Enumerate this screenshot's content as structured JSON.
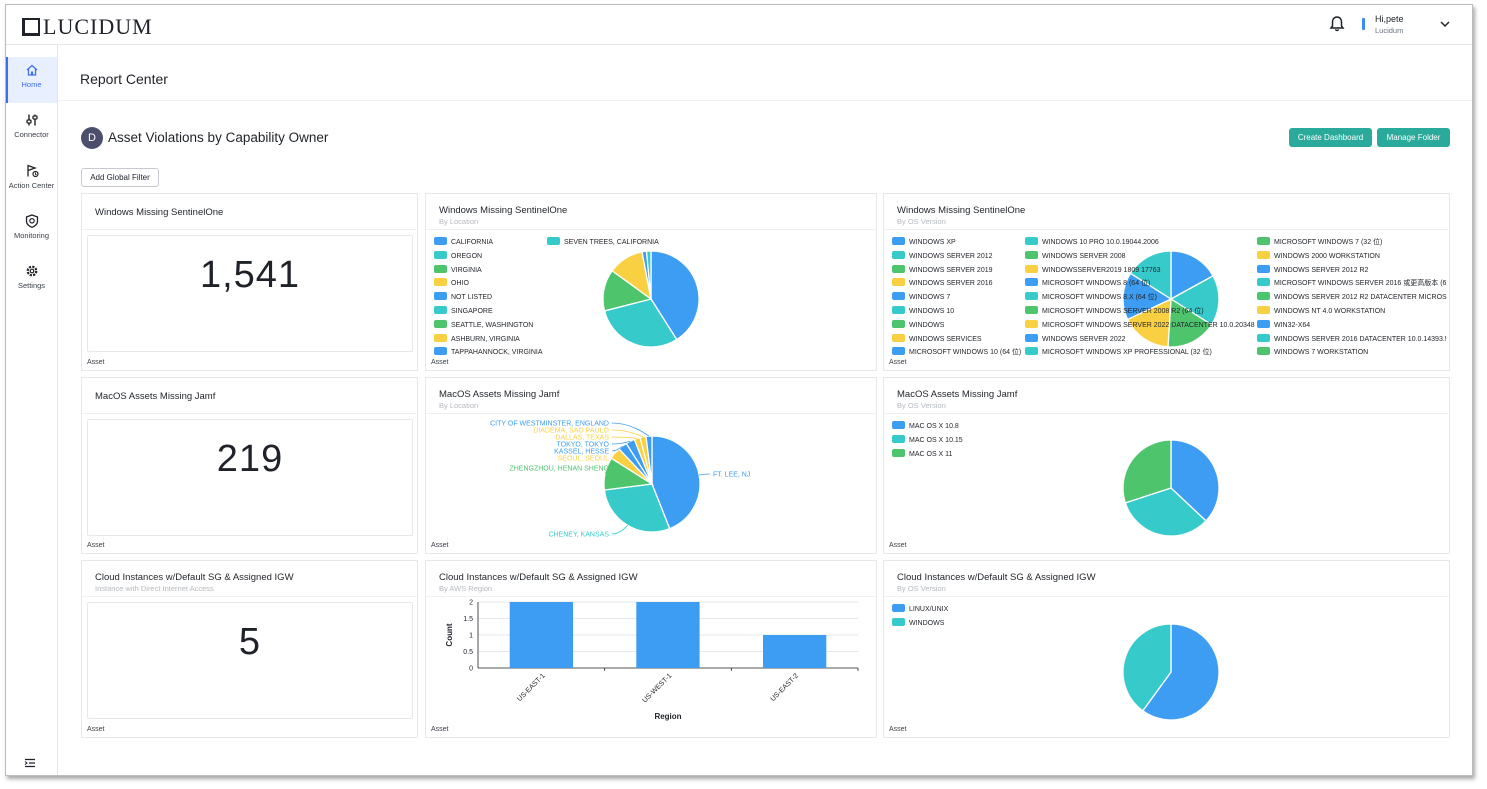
{
  "app": {
    "logo": "LUCIDUM"
  },
  "user": {
    "greeting": "Hi,pete",
    "org": "Lucidum"
  },
  "sidebar": {
    "items": [
      {
        "label": "Home",
        "icon": "home-icon"
      },
      {
        "label": "Connector",
        "icon": "connector-icon"
      },
      {
        "label": "Action Center",
        "icon": "action-center-icon"
      },
      {
        "label": "Monitoring",
        "icon": "monitoring-icon"
      },
      {
        "label": "Settings",
        "icon": "settings-icon"
      }
    ]
  },
  "page": {
    "title": "Report Center"
  },
  "dashboard": {
    "avatar": "D",
    "title": "Asset Violations by Capability Owner",
    "create_label": "Create Dashboard",
    "manage_label": "Manage Folder",
    "filter_label": "Add Global Filter"
  },
  "colors": {
    "blue": "#3d9df2",
    "teal": "#36cbca",
    "green": "#4ec46c",
    "yellow": "#f9d042",
    "accent": "#2aaa9a"
  },
  "cards": {
    "r1c1": {
      "title": "Windows Missing SentinelOne",
      "value": "1,541",
      "foot": "Asset"
    },
    "r1c2": {
      "title": "Windows Missing SentinelOne",
      "sub": "By Location",
      "foot": "Asset",
      "legend": [
        {
          "label": "CALIFORNIA",
          "color": "blue"
        },
        {
          "label": "OREGON",
          "color": "teal"
        },
        {
          "label": "VIRGINIA",
          "color": "green"
        },
        {
          "label": "OHIO",
          "color": "yellow"
        },
        {
          "label": "NOT LISTED",
          "color": "blue"
        },
        {
          "label": "SINGAPORE",
          "color": "teal"
        },
        {
          "label": "SEATTLE, WASHINGTON",
          "color": "green"
        },
        {
          "label": "ASHBURN, VIRGINIA",
          "color": "yellow"
        },
        {
          "label": "TAPPAHANNOCK, VIRGINIA",
          "color": "blue"
        },
        {
          "label": "SEVEN TREES, CALIFORNIA",
          "color": "teal"
        }
      ]
    },
    "r1c3": {
      "title": "Windows Missing SentinelOne",
      "sub": "By OS Version",
      "foot": "Asset",
      "legend": [
        {
          "label": "WINDOWS XP",
          "color": "blue"
        },
        {
          "label": "WINDOWS SERVER 2012",
          "color": "teal"
        },
        {
          "label": "WINDOWS SERVER 2019",
          "color": "green"
        },
        {
          "label": "WINDOWS SERVER 2016",
          "color": "yellow"
        },
        {
          "label": "WINDOWS 7",
          "color": "blue"
        },
        {
          "label": "WINDOWS 10",
          "color": "teal"
        },
        {
          "label": "WINDOWS",
          "color": "green"
        },
        {
          "label": "WINDOWS SERVICES",
          "color": "yellow"
        },
        {
          "label": "MICROSOFT WINDOWS 10 (64 位)",
          "color": "blue"
        },
        {
          "label": "WINDOWS 10 PRO 10.0.19044.2006",
          "color": "teal"
        },
        {
          "label": "WINDOWS SERVER 2008",
          "color": "green"
        },
        {
          "label": "WINDOWSSERVER2019 1809 17763",
          "color": "yellow"
        },
        {
          "label": "MICROSOFT WINDOWS 8 (64 位)",
          "color": "blue"
        },
        {
          "label": "MICROSOFT WINDOWS 8.X (64 位)",
          "color": "teal"
        },
        {
          "label": "MICROSOFT WINDOWS SERVER 2008 R2 (64 位)",
          "color": "green"
        },
        {
          "label": "MICROSOFT WINDOWS SERVER 2022 DATACENTER 10.0.20348",
          "color": "yellow"
        },
        {
          "label": "WINDOWS SERVER 2022",
          "color": "blue"
        },
        {
          "label": "MICROSOFT WINDOWS XP PROFESSIONAL (32 位)",
          "color": "teal"
        },
        {
          "label": "MICROSOFT WINDOWS 7 (32 位)",
          "color": "green"
        },
        {
          "label": "WINDOWS 2000 WORKSTATION",
          "color": "yellow"
        },
        {
          "label": "WINDOWS SERVER 2012 R2",
          "color": "blue"
        },
        {
          "label": "MICROSOFT WINDOWS SERVER 2016 或更高版本 (6",
          "color": "teal"
        },
        {
          "label": "WINDOWS SERVER 2012 R2 DATACENTER MICROS",
          "color": "green"
        },
        {
          "label": "WINDOWS NT 4.0 WORKSTATION",
          "color": "yellow"
        },
        {
          "label": "WIN32-X64",
          "color": "blue"
        },
        {
          "label": "WINDOWS SERVER 2016 DATACENTER 10.0.14393.!",
          "color": "teal"
        },
        {
          "label": "WINDOWS 7 WORKSTATION",
          "color": "green"
        }
      ]
    },
    "r2c1": {
      "title": "MacOS Assets Missing Jamf",
      "value": "219",
      "foot": "Asset"
    },
    "r2c2": {
      "title": "MacOS Assets Missing Jamf",
      "sub": "By Location",
      "foot": "Asset",
      "labels": [
        {
          "label": "CITY OF WESTMINSTER, ENGLAND",
          "color": "blue"
        },
        {
          "label": "DIADEMA, SAO PAULO",
          "color": "yellow"
        },
        {
          "label": "DALLAS, TEXAS",
          "color": "yellow"
        },
        {
          "label": "TOKYO, TOKYO",
          "color": "blue"
        },
        {
          "label": "KASSEL, HESSE",
          "color": "blue"
        },
        {
          "label": "SEOUL, SEOUL",
          "color": "yellow"
        },
        {
          "label": "ZHENGZHOU, HENAN SHENG",
          "color": "green"
        },
        {
          "label": "CHENEY, KANSAS",
          "color": "teal"
        },
        {
          "label": "FT. LEE, NJ",
          "color": "blue"
        }
      ]
    },
    "r2c3": {
      "title": "MacOS Assets Missing Jamf",
      "sub": "By OS Version",
      "foot": "Asset",
      "legend": [
        {
          "label": "MAC OS X 10.8",
          "color": "blue"
        },
        {
          "label": "MAC OS X 10.15",
          "color": "teal"
        },
        {
          "label": "MAC OS X 11",
          "color": "green"
        }
      ]
    },
    "r3c1": {
      "title": "Cloud Instances w/Default SG & Assigned IGW",
      "sub": "Instance with Direct Internet Access",
      "value": "5",
      "foot": "Asset"
    },
    "r3c2": {
      "title": "Cloud Instances w/Default SG & Assigned IGW",
      "sub": "By AWS Region",
      "foot": "Asset"
    },
    "r3c3": {
      "title": "Cloud Instances w/Default SG & Assigned IGW",
      "sub": "By OS Version",
      "foot": "Asset",
      "legend": [
        {
          "label": "LINUX/UNIX",
          "color": "blue"
        },
        {
          "label": "WINDOWS",
          "color": "teal"
        }
      ]
    }
  },
  "chart_data": [
    {
      "id": "r1c2",
      "type": "pie",
      "title": "Windows Missing SentinelOne",
      "categories": [
        "CALIFORNIA",
        "OREGON",
        "VIRGINIA",
        "OHIO",
        "NOT LISTED",
        "SINGAPORE"
      ],
      "values": [
        41,
        30,
        14,
        12,
        1.5,
        1.5
      ]
    },
    {
      "id": "r1c3",
      "type": "pie",
      "title": "Windows Missing SentinelOne",
      "categories": [
        "WINDOWS XP",
        "WINDOWS SERVER 2012",
        "WINDOWS SERVER 2019",
        "WINDOWS SERVER 2016",
        "WINDOWS 7",
        "WINDOWS 10"
      ],
      "values": [
        17,
        17,
        17,
        17,
        16,
        16
      ]
    },
    {
      "id": "r2c2",
      "type": "pie",
      "title": "MacOS Assets Missing Jamf",
      "categories": [
        "FT. LEE, NJ",
        "CHENEY, KANSAS",
        "ZHENGZHOU, HENAN SHENG",
        "SEOUL, SEOUL",
        "KASSEL, HESSE",
        "TOKYO, TOKYO",
        "DALLAS, TEXAS",
        "DIADEMA, SAO PAULO",
        "CITY OF WESTMINSTER, ENGLAND"
      ],
      "values": [
        44,
        29,
        11,
        4,
        3,
        3,
        2,
        2,
        2
      ]
    },
    {
      "id": "r2c3",
      "type": "pie",
      "title": "MacOS Assets Missing Jamf",
      "categories": [
        "MAC OS X 10.8",
        "MAC OS X 10.15",
        "MAC OS X 11"
      ],
      "values": [
        37,
        33,
        30
      ]
    },
    {
      "id": "r3c2",
      "type": "bar",
      "title": "Cloud Instances w/Default SG & Assigned IGW",
      "categories": [
        "US-EAST-1",
        "US-WEST-1",
        "US-EAST-2"
      ],
      "values": [
        2,
        2,
        1
      ],
      "xlabel": "Region",
      "ylabel": "Count",
      "ylim": [
        0,
        2
      ],
      "yticks": [
        "0",
        "0.5",
        "1",
        "1.5",
        "2"
      ]
    },
    {
      "id": "r3c3",
      "type": "pie",
      "title": "Cloud Instances w/Default SG & Assigned IGW",
      "categories": [
        "LINUX/UNIX",
        "WINDOWS"
      ],
      "values": [
        60,
        40
      ]
    }
  ]
}
